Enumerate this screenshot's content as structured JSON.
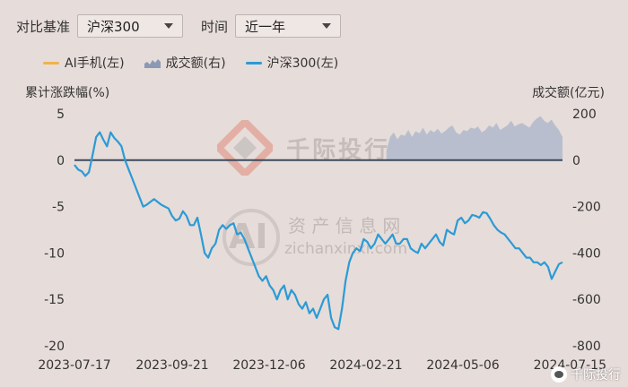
{
  "controls": {
    "benchmark_label": "对比基准",
    "benchmark_value": "沪深300",
    "period_label": "时间",
    "period_value": "近一年"
  },
  "watermarks": {
    "brand": "千际投行",
    "ai_site": "资 产 信 息 网",
    "ai_url": "zichanxinxi.com",
    "ai_letters": "AI"
  },
  "footer_brand": "千际投行",
  "colors": {
    "ai_phone": "#f0b24a",
    "volume": "#a8b4c8",
    "csi300": "#2b9bd6",
    "zero_line": "#3b4a5c"
  },
  "chart_data": {
    "type": "line",
    "left_axis_title": "累计涨跌幅(%)",
    "right_axis_title": "成交额(亿元)",
    "y_left": {
      "ticks": [
        "5",
        "0",
        "-5",
        "-10",
        "-15",
        "-20"
      ],
      "range": [
        -20,
        5
      ]
    },
    "y_right": {
      "ticks": [
        "200",
        "0",
        "-200",
        "-400",
        "-600",
        "-800"
      ],
      "range": [
        -800,
        200
      ]
    },
    "x_ticks": [
      "2023-07-17",
      "2023-09-21",
      "2023-12-06",
      "2024-02-21",
      "2024-05-06",
      "2024-07-15"
    ],
    "legend": [
      {
        "name": "AI手机(左)",
        "kind": "line",
        "color": "#f0b24a"
      },
      {
        "name": "成交额(右)",
        "kind": "area",
        "color": "#a8b4c8"
      },
      {
        "name": "沪深300(左)",
        "kind": "line",
        "color": "#2b9bd6"
      }
    ],
    "series": [
      {
        "name": "沪深300(左)",
        "axis": "left",
        "values": [
          -0.5,
          -1,
          -1.2,
          -1.7,
          -1.3,
          0.5,
          2.5,
          3,
          2.2,
          1.5,
          3,
          2.4,
          2,
          1.5,
          0,
          -1,
          -2,
          -3,
          -4,
          -5,
          -4.8,
          -4.5,
          -4.2,
          -4.5,
          -4.8,
          -5,
          -5.2,
          -6,
          -6.5,
          -6.3,
          -5.5,
          -6,
          -7,
          -7,
          -6.2,
          -8,
          -10,
          -10.5,
          -9.5,
          -9,
          -7.5,
          -7,
          -7.4,
          -7,
          -6.8,
          -8,
          -7.8,
          -8.5,
          -9.5,
          -10.5,
          -11.5,
          -12.5,
          -13,
          -12.5,
          -13.5,
          -14,
          -15,
          -14,
          -13.5,
          -15,
          -14,
          -14.5,
          -15.5,
          -16,
          -15.3,
          -16.5,
          -16,
          -17,
          -16,
          -15,
          -14.5,
          -17,
          -18,
          -18.2,
          -16,
          -13,
          -11,
          -10,
          -9.5,
          -9.8,
          -8.5,
          -8.8,
          -9.5,
          -9,
          -8,
          -8.5,
          -9,
          -8.5,
          -8,
          -9,
          -9,
          -8.5,
          -8.5,
          -9.5,
          -9.8,
          -10,
          -9,
          -9.5,
          -9,
          -8.5,
          -8,
          -8.8,
          -9.2,
          -7.5,
          -7.8,
          -8,
          -6.5,
          -6.2,
          -6.8,
          -6.5,
          -5.9,
          -6,
          -6.2,
          -5.6,
          -5.7,
          -6.3,
          -7,
          -7.5,
          -7.8,
          -8,
          -8.5,
          -9,
          -9.5,
          -9.5,
          -10,
          -10.5,
          -10.5,
          -11,
          -11,
          -11.3,
          -11,
          -11.5,
          -12.8,
          -12,
          -11.2,
          -11
        ]
      },
      {
        "name": "成交额(右)",
        "axis": "right",
        "values": [
          0,
          0,
          0,
          0,
          0,
          0,
          0,
          0,
          0,
          0,
          0,
          0,
          0,
          0,
          0,
          0,
          0,
          0,
          0,
          0,
          0,
          0,
          0,
          0,
          0,
          0,
          0,
          0,
          0,
          0,
          0,
          0,
          0,
          0,
          0,
          0,
          0,
          0,
          0,
          0,
          0,
          0,
          0,
          0,
          0,
          0,
          0,
          0,
          0,
          0,
          0,
          0,
          0,
          0,
          0,
          0,
          0,
          0,
          0,
          0,
          0,
          0,
          0,
          0,
          0,
          0,
          0,
          0,
          0,
          0,
          0,
          0,
          0,
          0,
          0,
          0,
          0,
          0,
          0,
          0,
          0,
          0,
          0,
          0,
          0,
          40,
          100,
          120,
          90,
          110,
          105,
          130,
          100,
          125,
          115,
          140,
          110,
          130,
          120,
          135,
          115,
          125,
          140,
          150,
          120,
          110,
          130,
          125,
          140,
          135,
          145,
          120,
          130,
          150,
          140,
          160,
          130,
          140,
          150,
          170,
          145,
          155,
          160,
          150,
          140,
          165,
          180,
          190,
          170,
          160,
          175,
          150,
          130,
          100
        ]
      }
    ]
  }
}
